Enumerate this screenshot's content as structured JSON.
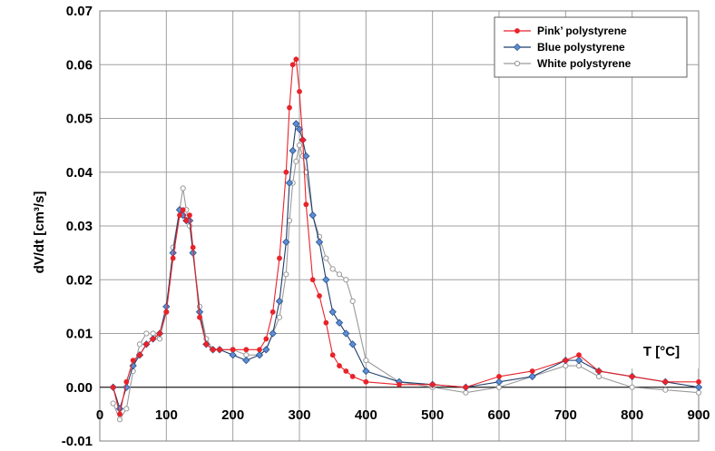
{
  "chart_data": {
    "type": "line",
    "xlabel": "T [°C]",
    "ylabel": "dV/dt [cm³/s]",
    "xlim": [
      0,
      900
    ],
    "ylim": [
      -0.01,
      0.07
    ],
    "x_ticks": [
      0,
      100,
      200,
      300,
      400,
      500,
      600,
      700,
      800,
      900
    ],
    "x_tick_labels": [
      "0",
      "100",
      "200",
      "300",
      "400",
      "500",
      "600",
      "700",
      "800",
      "900"
    ],
    "y_ticks": [
      -0.01,
      0.0,
      0.01,
      0.02,
      0.03,
      0.04,
      0.05,
      0.06,
      0.07
    ],
    "y_tick_labels": [
      "-0.01",
      "0.00",
      "0.01",
      "0.02",
      "0.03",
      "0.04",
      "0.05",
      "0.06",
      "0.07"
    ],
    "grid": true,
    "legend_position": "top-right",
    "series": [
      {
        "name": "Pink’ polystyrene",
        "color": "#e8232a",
        "marker": "circle",
        "x": [
          20,
          30,
          40,
          50,
          60,
          70,
          80,
          90,
          100,
          110,
          120,
          125,
          130,
          135,
          140,
          150,
          160,
          170,
          180,
          200,
          220,
          240,
          250,
          260,
          270,
          280,
          285,
          290,
          295,
          300,
          305,
          310,
          320,
          330,
          340,
          350,
          360,
          370,
          380,
          400,
          450,
          500,
          550,
          600,
          650,
          700,
          720,
          750,
          800,
          850,
          900
        ],
        "y": [
          0.0,
          -0.005,
          0.001,
          0.005,
          0.006,
          0.008,
          0.009,
          0.01,
          0.014,
          0.024,
          0.032,
          0.033,
          0.031,
          0.032,
          0.026,
          0.013,
          0.008,
          0.007,
          0.007,
          0.007,
          0.007,
          0.007,
          0.009,
          0.014,
          0.024,
          0.04,
          0.052,
          0.06,
          0.061,
          0.055,
          0.046,
          0.034,
          0.02,
          0.017,
          0.012,
          0.006,
          0.004,
          0.003,
          0.002,
          0.001,
          0.0005,
          0.0005,
          0.0,
          0.002,
          0.003,
          0.005,
          0.006,
          0.003,
          0.002,
          0.001,
          0.001
        ]
      },
      {
        "name": "Blue polystyrene",
        "color": "#3f6fb5",
        "marker": "diamond",
        "x": [
          20,
          30,
          40,
          50,
          60,
          70,
          80,
          90,
          100,
          110,
          120,
          125,
          130,
          135,
          140,
          150,
          160,
          170,
          180,
          200,
          220,
          240,
          250,
          260,
          270,
          280,
          285,
          290,
          295,
          300,
          305,
          310,
          320,
          330,
          340,
          350,
          360,
          370,
          380,
          400,
          450,
          500,
          550,
          600,
          650,
          700,
          720,
          750,
          800,
          850,
          900
        ],
        "y": [
          0.0,
          -0.004,
          0.0,
          0.004,
          0.006,
          0.008,
          0.009,
          0.01,
          0.015,
          0.025,
          0.033,
          0.032,
          0.031,
          0.031,
          0.025,
          0.014,
          0.008,
          0.007,
          0.007,
          0.006,
          0.005,
          0.006,
          0.007,
          0.01,
          0.016,
          0.027,
          0.038,
          0.044,
          0.049,
          0.048,
          0.046,
          0.043,
          0.032,
          0.027,
          0.02,
          0.014,
          0.012,
          0.01,
          0.008,
          0.003,
          0.001,
          0.0005,
          0.0,
          0.001,
          0.002,
          0.005,
          0.005,
          0.003,
          0.002,
          0.001,
          0.0
        ]
      },
      {
        "name": "White polystyrene",
        "color": "#9a9a9a",
        "marker": "open-circle",
        "x": [
          20,
          30,
          40,
          50,
          60,
          70,
          80,
          90,
          100,
          110,
          120,
          125,
          130,
          135,
          140,
          150,
          160,
          170,
          180,
          200,
          220,
          240,
          250,
          260,
          270,
          280,
          285,
          290,
          295,
          300,
          305,
          310,
          320,
          330,
          340,
          350,
          360,
          370,
          380,
          400,
          450,
          500,
          550,
          600,
          650,
          700,
          720,
          750,
          800,
          850,
          900
        ],
        "y": [
          -0.003,
          -0.006,
          -0.004,
          0.003,
          0.008,
          0.01,
          0.01,
          0.009,
          0.014,
          0.026,
          0.033,
          0.037,
          0.033,
          0.03,
          0.025,
          0.015,
          0.009,
          0.007,
          0.007,
          0.007,
          0.006,
          0.006,
          0.007,
          0.01,
          0.013,
          0.021,
          0.031,
          0.038,
          0.042,
          0.045,
          0.043,
          0.04,
          0.032,
          0.028,
          0.024,
          0.022,
          0.021,
          0.02,
          0.016,
          0.005,
          0.001,
          0.0,
          -0.001,
          0.0,
          0.002,
          0.004,
          0.004,
          0.002,
          0.0,
          -0.0005,
          -0.001
        ]
      }
    ]
  }
}
